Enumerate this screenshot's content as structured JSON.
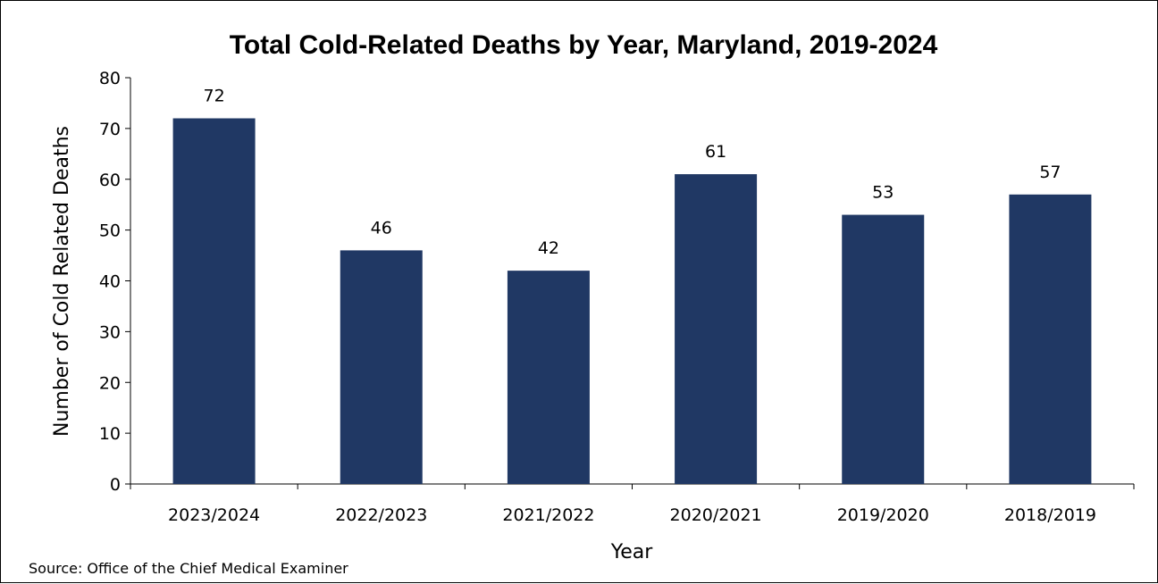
{
  "chart_data": {
    "type": "bar",
    "title": "Total Cold-Related Deaths by Year, Maryland, 2019-2024",
    "xlabel": "Year",
    "ylabel": "Number of Cold Related Deaths",
    "categories": [
      "2023/2024",
      "2022/2023",
      "2021/2022",
      "2020/2021",
      "2019/2020",
      "2018/2019"
    ],
    "values": [
      72,
      46,
      42,
      61,
      53,
      57
    ],
    "ylim": [
      0,
      80
    ],
    "yticks": [
      0,
      10,
      20,
      30,
      40,
      50,
      60,
      70,
      80
    ],
    "bar_color": "#203864",
    "grid": false,
    "legend": "none",
    "data_labels": true
  },
  "source": "Source: Office of the Chief Medical Examiner"
}
